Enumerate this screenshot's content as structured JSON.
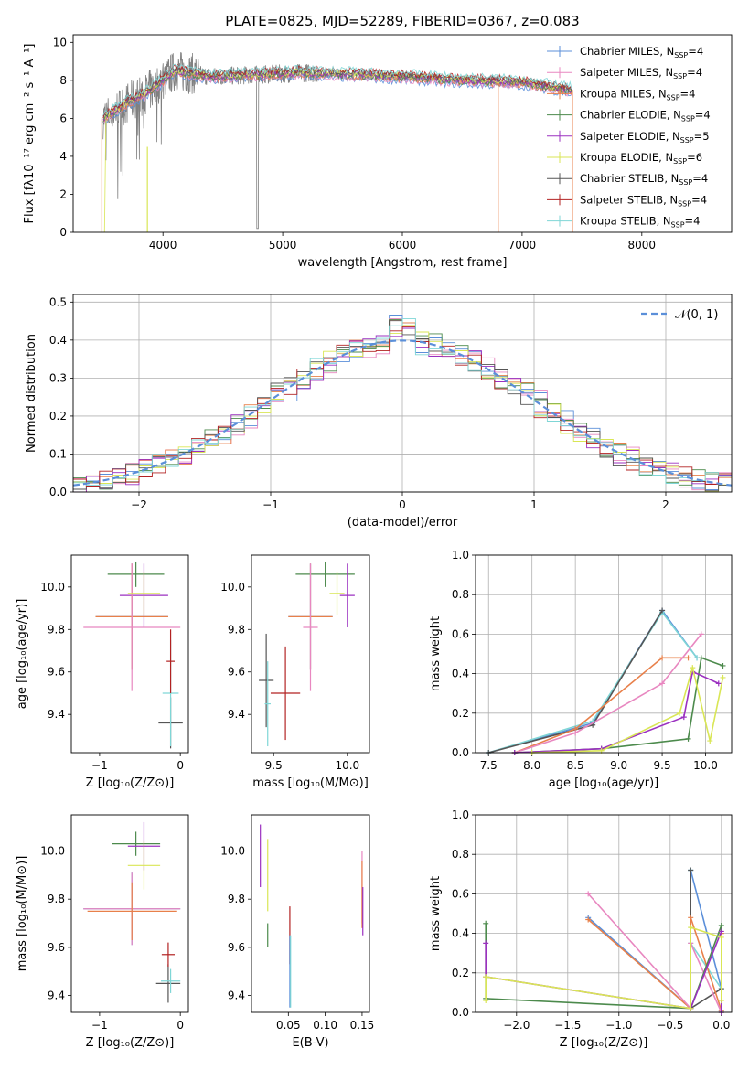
{
  "figure": {
    "title": "PLATE=0825, MJD=52289, FIBERID=0367, z=0.083"
  },
  "chart_data": [
    {
      "id": "spectrum",
      "type": "line",
      "xlabel": "wavelength [Angstrom, rest frame]",
      "ylabel": "Flux [fλ10⁻¹⁷ erg cm⁻² s⁻¹ A⁻¹]",
      "xlim": [
        3250,
        8750
      ],
      "ylim": [
        0,
        10.4
      ],
      "xticks": [
        4000,
        5000,
        6000,
        7000,
        8000
      ],
      "yticks": [
        0,
        2,
        4,
        6,
        8,
        10
      ],
      "legend_position": "top-right",
      "data_color": "#808080",
      "data_description_points": [
        [
          3500,
          6
        ],
        [
          3700,
          6.8
        ],
        [
          3900,
          7.5
        ],
        [
          4100,
          8.5
        ],
        [
          4400,
          8.2
        ],
        [
          4800,
          8.3
        ],
        [
          5200,
          8.4
        ],
        [
          5600,
          8.3
        ],
        [
          6000,
          8.2
        ],
        [
          6500,
          8.0
        ],
        [
          7000,
          7.9
        ],
        [
          7400,
          7.5
        ]
      ],
      "series": [
        {
          "name": "Chabrier MILES, N",
          "sub": "SSP",
          "suffix": "=4",
          "color": "#5b8fd9"
        },
        {
          "name": "Salpeter MILES, N",
          "sub": "SSP",
          "suffix": "=4",
          "color": "#e887c0"
        },
        {
          "name": "Kroupa MILES, N",
          "sub": "SSP",
          "suffix": "=4",
          "color": "#e8804a"
        },
        {
          "name": "Chabrier ELODIE, N",
          "sub": "SSP",
          "suffix": "=4",
          "color": "#4c8a4c"
        },
        {
          "name": "Salpeter ELODIE, N",
          "sub": "SSP",
          "suffix": "=5",
          "color": "#9b30c0"
        },
        {
          "name": "Kroupa ELODIE, N",
          "sub": "SSP",
          "suffix": "=6",
          "color": "#d9e655"
        },
        {
          "name": "Chabrier STELIB, N",
          "sub": "SSP",
          "suffix": "=4",
          "color": "#555555"
        },
        {
          "name": "Salpeter STELIB, N",
          "sub": "SSP",
          "suffix": "=4",
          "color": "#b22222"
        },
        {
          "name": "Kroupa STELIB, N",
          "sub": "SSP",
          "suffix": "=4",
          "color": "#7fd6d6"
        }
      ]
    },
    {
      "id": "residuals",
      "type": "line",
      "xlabel": "(data-model)/error",
      "ylabel": "Normed distribution",
      "xlim": [
        -2.5,
        2.5
      ],
      "ylim": [
        0,
        0.52
      ],
      "xticks": [
        -2,
        -1,
        0,
        1,
        2
      ],
      "xtick_labels": [
        "−2",
        "−1",
        "0",
        "1",
        "2"
      ],
      "yticks": [
        0.0,
        0.1,
        0.2,
        0.3,
        0.4,
        0.5
      ],
      "ytick_labels": [
        "0.0",
        "0.1",
        "0.2",
        "0.3",
        "0.4",
        "0.5"
      ],
      "grid": true,
      "legend_position": "top-right",
      "gaussian_label": "𝒩(0, 1)",
      "gaussian_color": "#5b8fd9"
    },
    {
      "id": "age_vs_Z",
      "type": "scatter",
      "xlabel": "Z [log₁₀(Z/Z⊙)]",
      "ylabel": "age  [log₁₀(age/yr)]",
      "xlim": [
        -1.35,
        0.1
      ],
      "ylim": [
        9.22,
        10.15
      ],
      "xticks": [
        -1,
        0
      ],
      "xtick_labels": [
        "−1",
        "0"
      ],
      "yticks": [
        9.4,
        9.6,
        9.8,
        10.0
      ],
      "yticks_labels": [
        "9.4",
        "9.6",
        "9.8",
        "10.0"
      ],
      "points": [
        {
          "x": -0.55,
          "y": 10.06,
          "xerr": 0.35,
          "yerr": 0.06,
          "color": "#4c8a4c"
        },
        {
          "x": -0.45,
          "y": 9.96,
          "xerr": 0.3,
          "yerr": 0.15,
          "color": "#9b30c0"
        },
        {
          "x": -0.6,
          "y": 9.86,
          "xerr": 0.45,
          "yerr": 0.25,
          "color": "#5b8fd9"
        },
        {
          "x": -0.6,
          "y": 9.86,
          "xerr": 0.45,
          "yerr": 0.25,
          "color": "#e8804a"
        },
        {
          "x": -0.6,
          "y": 9.81,
          "xerr": 0.6,
          "yerr": 0.3,
          "color": "#e887c0"
        },
        {
          "x": -0.45,
          "y": 9.97,
          "xerr": 0.2,
          "yerr": 0.1,
          "color": "#d9e655"
        },
        {
          "x": -0.12,
          "y": 9.36,
          "xerr": 0.15,
          "yerr": 0.12,
          "color": "#555555"
        },
        {
          "x": -0.12,
          "y": 9.5,
          "xerr": 0.1,
          "yerr": 0.25,
          "color": "#7fd6d6"
        },
        {
          "x": -0.12,
          "y": 9.65,
          "xerr": 0.05,
          "yerr": 0.15,
          "color": "#b22222"
        }
      ]
    },
    {
      "id": "age_vs_mass",
      "type": "scatter",
      "xlabel": "mass [log₁₀(M/M⊙)]",
      "ylabel": "",
      "xlim": [
        9.35,
        10.15
      ],
      "ylim": [
        9.22,
        10.15
      ],
      "xticks": [
        9.5,
        10.0
      ],
      "xtick_labels": [
        "9.5",
        "10.0"
      ],
      "yticks": [
        9.4,
        9.6,
        9.8,
        10.0
      ],
      "ytick_labels": [
        "9.4",
        "9.6",
        "9.8",
        "10.0"
      ],
      "points": [
        {
          "x": 9.85,
          "y": 10.06,
          "xerr": 0.2,
          "yerr": 0.06,
          "color": "#4c8a4c"
        },
        {
          "x": 10.0,
          "y": 9.96,
          "xerr": 0.05,
          "yerr": 0.15,
          "color": "#9b30c0"
        },
        {
          "x": 9.75,
          "y": 9.86,
          "xerr": 0.15,
          "yerr": 0.25,
          "color": "#5b8fd9"
        },
        {
          "x": 9.75,
          "y": 9.86,
          "xerr": 0.15,
          "yerr": 0.25,
          "color": "#e8804a"
        },
        {
          "x": 9.75,
          "y": 9.81,
          "xerr": 0.05,
          "yerr": 0.3,
          "color": "#e887c0"
        },
        {
          "x": 9.93,
          "y": 9.97,
          "xerr": 0.05,
          "yerr": 0.1,
          "color": "#d9e655"
        },
        {
          "x": 9.45,
          "y": 9.56,
          "xerr": 0.05,
          "yerr": 0.22,
          "color": "#555555"
        },
        {
          "x": 9.46,
          "y": 9.45,
          "xerr": 0.02,
          "yerr": 0.2,
          "color": "#7fd6d6"
        },
        {
          "x": 9.58,
          "y": 9.5,
          "xerr": 0.1,
          "yerr": 0.22,
          "color": "#b22222"
        }
      ]
    },
    {
      "id": "weight_vs_age",
      "type": "line",
      "xlabel": "age  [log₁₀(age/yr)]",
      "ylabel": "mass weight",
      "xlim": [
        7.35,
        10.3
      ],
      "ylim": [
        0,
        1.0
      ],
      "xticks": [
        7.5,
        8.0,
        8.5,
        9.0,
        9.5,
        10.0
      ],
      "xtick_labels": [
        "7.5",
        "8.0",
        "8.5",
        "9.0",
        "9.5",
        "10.0"
      ],
      "yticks": [
        0.0,
        0.2,
        0.4,
        0.6,
        0.8,
        1.0
      ],
      "ytick_labels": [
        "0.0",
        "0.2",
        "0.4",
        "0.6",
        "0.8",
        "1.0"
      ],
      "grid": true,
      "series": [
        {
          "color": "#5b8fd9",
          "x": [
            7.5,
            8.7,
            9.5,
            9.9
          ],
          "y": [
            0.0,
            0.15,
            0.72,
            0.48
          ]
        },
        {
          "color": "#7fd6d6",
          "x": [
            7.5,
            8.7,
            9.5,
            9.9
          ],
          "y": [
            0.0,
            0.16,
            0.71,
            0.48
          ]
        },
        {
          "color": "#555555",
          "x": [
            7.5,
            8.7,
            9.5
          ],
          "y": [
            0.0,
            0.14,
            0.72
          ]
        },
        {
          "color": "#e8804a",
          "x": [
            7.8,
            8.5,
            9.5,
            9.8
          ],
          "y": [
            0.0,
            0.12,
            0.48,
            0.48
          ]
        },
        {
          "color": "#e887c0",
          "x": [
            7.8,
            8.5,
            9.5,
            9.95
          ],
          "y": [
            0.0,
            0.1,
            0.35,
            0.6
          ]
        },
        {
          "color": "#4c8a4c",
          "x": [
            7.8,
            8.8,
            9.8,
            9.95,
            10.2
          ],
          "y": [
            0.0,
            0.02,
            0.07,
            0.48,
            0.44
          ]
        },
        {
          "color": "#9b30c0",
          "x": [
            7.8,
            8.8,
            9.75,
            9.85,
            10.15
          ],
          "y": [
            0.0,
            0.02,
            0.18,
            0.41,
            0.35
          ]
        },
        {
          "color": "#d9e655",
          "x": [
            8.0,
            8.8,
            9.7,
            9.85,
            10.05,
            10.2
          ],
          "y": [
            0.0,
            0.01,
            0.2,
            0.43,
            0.06,
            0.38
          ]
        }
      ]
    },
    {
      "id": "mass_vs_Z",
      "type": "scatter",
      "xlabel": "Z [log₁₀(Z/Z⊙)]",
      "ylabel": "mass [log₁₀(M/M⊙)]",
      "xlim": [
        -1.35,
        0.1
      ],
      "ylim": [
        9.33,
        10.15
      ],
      "xticks": [
        -1,
        0
      ],
      "xtick_labels": [
        "−1",
        "0"
      ],
      "yticks": [
        9.4,
        9.6,
        9.8,
        10.0
      ],
      "ytick_labels": [
        "9.4",
        "9.6",
        "9.8",
        "10.0"
      ],
      "points": [
        {
          "x": -0.55,
          "y": 10.03,
          "xerr": 0.3,
          "yerr": 0.05,
          "color": "#4c8a4c"
        },
        {
          "x": -0.45,
          "y": 10.02,
          "xerr": 0.2,
          "yerr": 0.1,
          "color": "#9b30c0"
        },
        {
          "x": -0.45,
          "y": 9.94,
          "xerr": 0.2,
          "yerr": 0.1,
          "color": "#d9e655"
        },
        {
          "x": -0.6,
          "y": 9.76,
          "xerr": 0.6,
          "yerr": 0.15,
          "color": "#5b8fd9"
        },
        {
          "x": -0.6,
          "y": 9.76,
          "xerr": 0.6,
          "yerr": 0.15,
          "color": "#e887c0"
        },
        {
          "x": -0.6,
          "y": 9.75,
          "xerr": 0.55,
          "yerr": 0.12,
          "color": "#e8804a"
        },
        {
          "x": -0.15,
          "y": 9.45,
          "xerr": 0.15,
          "yerr": 0.08,
          "color": "#555555"
        },
        {
          "x": -0.12,
          "y": 9.46,
          "xerr": 0.12,
          "yerr": 0.05,
          "color": "#7fd6d6"
        },
        {
          "x": -0.15,
          "y": 9.57,
          "xerr": 0.08,
          "yerr": 0.05,
          "color": "#b22222"
        }
      ]
    },
    {
      "id": "mass_vs_EBV",
      "type": "scatter",
      "xlabel": "E(B-V)",
      "ylabel": "",
      "xlim": [
        0.0,
        0.16
      ],
      "ylim": [
        9.33,
        10.15
      ],
      "xticks": [
        0.05,
        0.1,
        0.15
      ],
      "xtick_labels": [
        "0.05",
        "0.10",
        "0.15"
      ],
      "yticks": [
        9.4,
        9.6,
        9.8,
        10.0
      ],
      "ytick_labels": [
        "9.4",
        "9.6",
        "9.8",
        "10.0"
      ],
      "points": [
        {
          "x": 0.012,
          "y": 9.98,
          "xerr": 0,
          "yerr": 0.13,
          "color": "#9b30c0"
        },
        {
          "x": 0.022,
          "y": 9.9,
          "xerr": 0,
          "yerr": 0.15,
          "color": "#d9e655"
        },
        {
          "x": 0.022,
          "y": 9.65,
          "xerr": 0,
          "yerr": 0.05,
          "color": "#4c8a4c"
        },
        {
          "x": 0.052,
          "y": 9.65,
          "xerr": 0,
          "yerr": 0.12,
          "color": "#b22222"
        },
        {
          "x": 0.052,
          "y": 9.5,
          "xerr": 0,
          "yerr": 0.15,
          "color": "#5b8fd9"
        },
        {
          "x": 0.053,
          "y": 9.5,
          "xerr": 0,
          "yerr": 0.15,
          "color": "#7fd6d6"
        },
        {
          "x": 0.15,
          "y": 9.85,
          "xerr": 0,
          "yerr": 0.15,
          "color": "#e887c0"
        },
        {
          "x": 0.15,
          "y": 9.82,
          "xerr": 0,
          "yerr": 0.14,
          "color": "#e8804a"
        },
        {
          "x": 0.151,
          "y": 9.75,
          "xerr": 0,
          "yerr": 0.1,
          "color": "#9b30c0"
        }
      ]
    },
    {
      "id": "weight_vs_Z",
      "type": "line",
      "xlabel": "Z [log₁₀(Z/Z⊙)]",
      "ylabel": "mass weight",
      "xlim": [
        -2.4,
        0.1
      ],
      "ylim": [
        0,
        1.0
      ],
      "xticks": [
        -2.0,
        -1.5,
        -1.0,
        -0.5,
        0.0
      ],
      "xtick_labels": [
        "−2.0",
        "−1.5",
        "−1.0",
        "−0.5",
        "0.0"
      ],
      "yticks": [
        0.0,
        0.2,
        0.4,
        0.6,
        0.8,
        1.0
      ],
      "ytick_labels": [
        "0.0",
        "0.2",
        "0.4",
        "0.6",
        "0.8",
        "1.0"
      ],
      "grid": true,
      "series": [
        {
          "color": "#5b8fd9",
          "x": [
            -1.3,
            -0.3,
            -0.3,
            0.0
          ],
          "y": [
            0.48,
            0.02,
            0.72,
            0.12
          ]
        },
        {
          "color": "#7fd6d6",
          "x": [
            -0.3,
            -0.3,
            0.0,
            0.0
          ],
          "y": [
            0.72,
            0.35,
            0.12,
            0.01
          ]
        },
        {
          "color": "#555555",
          "x": [
            -0.3,
            -0.3,
            0.0
          ],
          "y": [
            0.72,
            0.02,
            0.12
          ]
        },
        {
          "color": "#e8804a",
          "x": [
            -1.3,
            -0.3,
            -0.3,
            0.0,
            0.0
          ],
          "y": [
            0.47,
            0.02,
            0.48,
            0.01,
            0.4
          ]
        },
        {
          "color": "#e887c0",
          "x": [
            -1.3,
            -0.3,
            -0.3,
            0.0
          ],
          "y": [
            0.6,
            0.02,
            0.35,
            0.0
          ]
        },
        {
          "color": "#4c8a4c",
          "x": [
            -2.3,
            -2.3,
            -0.3,
            0.0,
            0.0
          ],
          "y": [
            0.45,
            0.07,
            0.02,
            0.44,
            0.0
          ]
        },
        {
          "color": "#9b30c0",
          "x": [
            -2.3,
            -2.3,
            -0.3,
            0.0,
            0.0
          ],
          "y": [
            0.35,
            0.18,
            0.02,
            0.41,
            0.0
          ]
        },
        {
          "color": "#d9e655",
          "x": [
            -2.3,
            -2.3,
            -0.3,
            -0.3,
            0.0,
            0.0
          ],
          "y": [
            0.06,
            0.18,
            0.02,
            0.43,
            0.38,
            0.06
          ]
        }
      ]
    }
  ]
}
